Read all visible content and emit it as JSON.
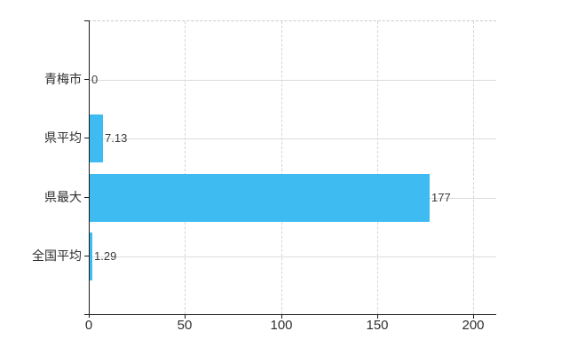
{
  "chart_data": {
    "type": "bar",
    "orientation": "horizontal",
    "categories": [
      "青梅市",
      "県平均",
      "県最大",
      "全国平均"
    ],
    "values": [
      0,
      7.13,
      177,
      1.29
    ],
    "value_labels": [
      "0",
      "7.13",
      "177",
      "1.29"
    ],
    "x_ticks": [
      0,
      50,
      100,
      150,
      200
    ],
    "x_tick_labels": [
      "0",
      "50",
      "100",
      "150",
      "200"
    ],
    "xlim": [
      0,
      212
    ],
    "title": "",
    "xlabel": "",
    "ylabel": "",
    "grid": "on",
    "legend": "none"
  },
  "colors": {
    "background": "#ffffff",
    "bar": "#3ebcf2",
    "axis": "#1a1a1a",
    "h_gridline": "#d9ded9",
    "v_gridline": "#d6d2d6",
    "top_border": "#c9c9c9",
    "label_text": "#2e2e2e",
    "value_text": "#3c3c3c"
  }
}
